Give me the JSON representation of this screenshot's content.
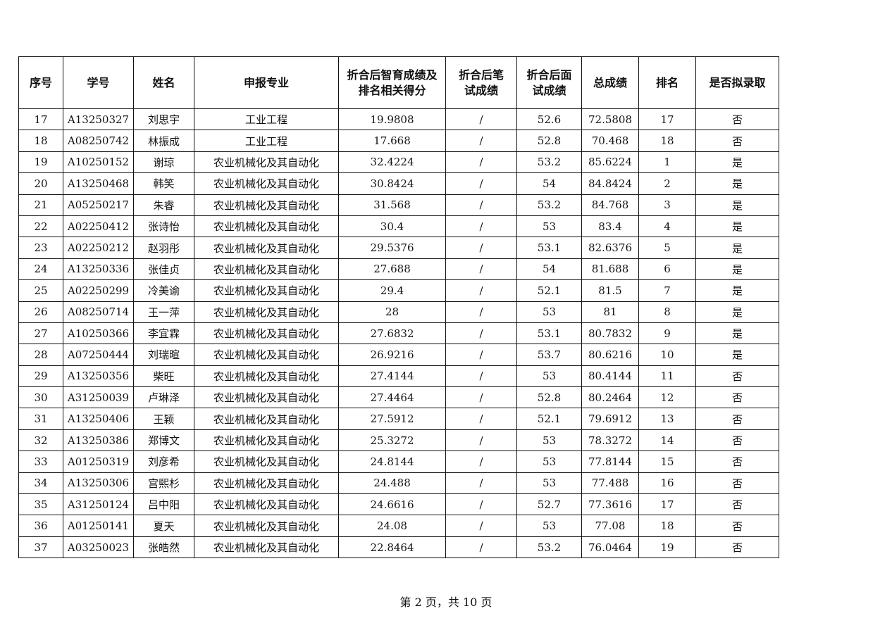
{
  "table": {
    "headers": [
      "序号",
      "学号",
      "姓名",
      "申报专业",
      "折合后智育成绩及排名相关得分",
      "折合后笔试成绩",
      "折合后面试成绩",
      "总成绩",
      "排名",
      "是否拟录取"
    ],
    "rows": [
      [
        "17",
        "A13250327",
        "刘思宇",
        "工业工程",
        "19.9808",
        "/",
        "52.6",
        "72.5808",
        "17",
        "否"
      ],
      [
        "18",
        "A08250742",
        "林振成",
        "工业工程",
        "17.668",
        "/",
        "52.8",
        "70.468",
        "18",
        "否"
      ],
      [
        "19",
        "A10250152",
        "谢琼",
        "农业机械化及其自动化",
        "32.4224",
        "/",
        "53.2",
        "85.6224",
        "1",
        "是"
      ],
      [
        "20",
        "A13250468",
        "韩笑",
        "农业机械化及其自动化",
        "30.8424",
        "/",
        "54",
        "84.8424",
        "2",
        "是"
      ],
      [
        "21",
        "A05250217",
        "朱睿",
        "农业机械化及其自动化",
        "31.568",
        "/",
        "53.2",
        "84.768",
        "3",
        "是"
      ],
      [
        "22",
        "A02250412",
        "张诗怡",
        "农业机械化及其自动化",
        "30.4",
        "/",
        "53",
        "83.4",
        "4",
        "是"
      ],
      [
        "23",
        "A02250212",
        "赵羽彤",
        "农业机械化及其自动化",
        "29.5376",
        "/",
        "53.1",
        "82.6376",
        "5",
        "是"
      ],
      [
        "24",
        "A13250336",
        "张佳贞",
        "农业机械化及其自动化",
        "27.688",
        "/",
        "54",
        "81.688",
        "6",
        "是"
      ],
      [
        "25",
        "A02250299",
        "冷美谕",
        "农业机械化及其自动化",
        "29.4",
        "/",
        "52.1",
        "81.5",
        "7",
        "是"
      ],
      [
        "26",
        "A08250714",
        "王一萍",
        "农业机械化及其自动化",
        "28",
        "/",
        "53",
        "81",
        "8",
        "是"
      ],
      [
        "27",
        "A10250366",
        "李宜霖",
        "农业机械化及其自动化",
        "27.6832",
        "/",
        "53.1",
        "80.7832",
        "9",
        "是"
      ],
      [
        "28",
        "A07250444",
        "刘瑞暄",
        "农业机械化及其自动化",
        "26.9216",
        "/",
        "53.7",
        "80.6216",
        "10",
        "是"
      ],
      [
        "29",
        "A13250356",
        "柴旺",
        "农业机械化及其自动化",
        "27.4144",
        "/",
        "53",
        "80.4144",
        "11",
        "否"
      ],
      [
        "30",
        "A31250039",
        "卢琳泽",
        "农业机械化及其自动化",
        "27.4464",
        "/",
        "52.8",
        "80.2464",
        "12",
        "否"
      ],
      [
        "31",
        "A13250406",
        "王颖",
        "农业机械化及其自动化",
        "27.5912",
        "/",
        "52.1",
        "79.6912",
        "13",
        "否"
      ],
      [
        "32",
        "A13250386",
        "郑博文",
        "农业机械化及其自动化",
        "25.3272",
        "/",
        "53",
        "78.3272",
        "14",
        "否"
      ],
      [
        "33",
        "A01250319",
        "刘彦希",
        "农业机械化及其自动化",
        "24.8144",
        "/",
        "53",
        "77.8144",
        "15",
        "否"
      ],
      [
        "34",
        "A13250306",
        "宫熙杉",
        "农业机械化及其自动化",
        "24.488",
        "/",
        "53",
        "77.488",
        "16",
        "否"
      ],
      [
        "35",
        "A31250124",
        "吕中阳",
        "农业机械化及其自动化",
        "24.6616",
        "/",
        "52.7",
        "77.3616",
        "17",
        "否"
      ],
      [
        "36",
        "A01250141",
        "夏天",
        "农业机械化及其自动化",
        "24.08",
        "/",
        "53",
        "77.08",
        "18",
        "否"
      ],
      [
        "37",
        "A03250023",
        "张皓然",
        "农业机械化及其自动化",
        "22.8464",
        "/",
        "53.2",
        "76.0464",
        "19",
        "否"
      ]
    ]
  },
  "footer": {
    "page_label": "第 2 页，共 10 页"
  }
}
